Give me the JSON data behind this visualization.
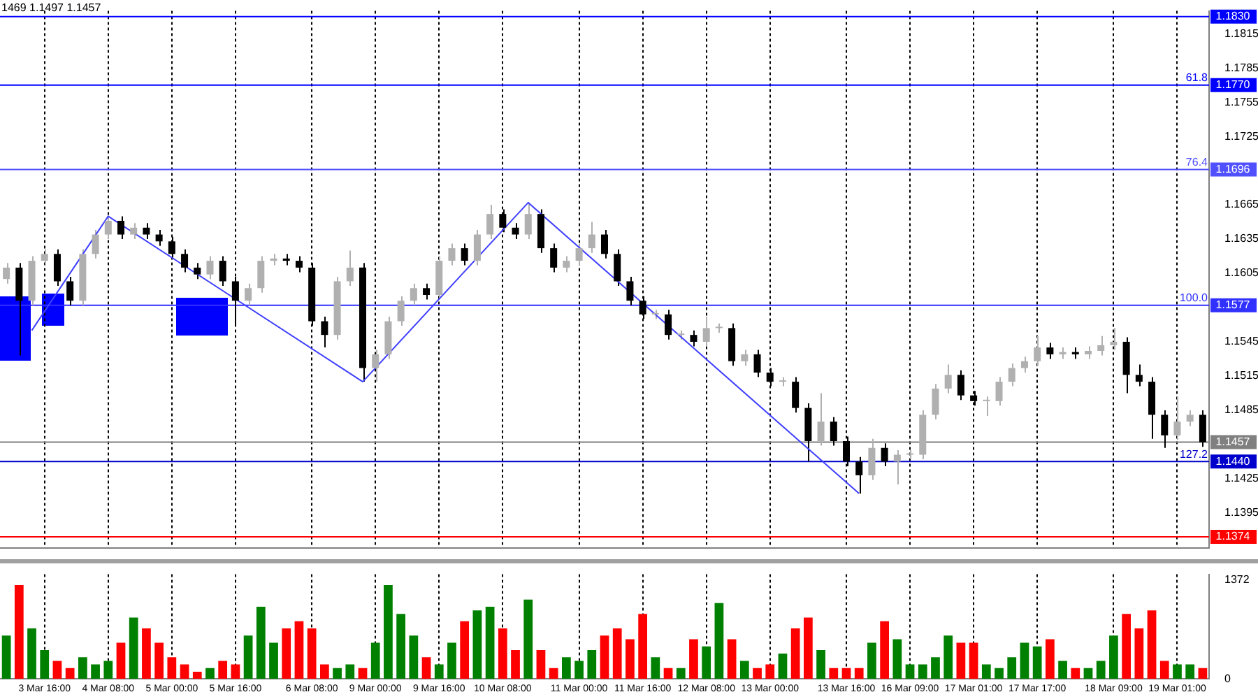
{
  "chart_data": [
    {
      "type": "candlestick",
      "annotations": [
        "1469 1.1497 1.1457",
        {
          "text": "61.8",
          "y": 1.177
        },
        {
          "text": "76.4",
          "y": 1.1696
        },
        {
          "text": "100.0",
          "y": 1.1577
        },
        {
          "text": "127.2",
          "y": 1.144
        }
      ],
      "categories": [
        null,
        null,
        null,
        null,
        null,
        null,
        null,
        null,
        null,
        null,
        null,
        null,
        null,
        null,
        null,
        null,
        null,
        null,
        null,
        null,
        null,
        null,
        null,
        null,
        null,
        null,
        null,
        null,
        null,
        null,
        null,
        null,
        null,
        null,
        null,
        null,
        null,
        null,
        null,
        null,
        null,
        null,
        null,
        null,
        null,
        null,
        null,
        null,
        null,
        null,
        null,
        null,
        null,
        null,
        null,
        null,
        null,
        null,
        null,
        null,
        null,
        null,
        null,
        null,
        null,
        null,
        null,
        null,
        null,
        null,
        null,
        null,
        null,
        null,
        null,
        null,
        null,
        null,
        null,
        null,
        null,
        null,
        null,
        null,
        null,
        null,
        null,
        null,
        null,
        null,
        null,
        null,
        null,
        null,
        null
      ],
      "ohlc": [
        [
          1.16,
          1.1614,
          1.1596,
          1.161
        ],
        [
          1.161,
          1.1614,
          1.1533,
          1.1581
        ],
        [
          1.1581,
          1.162,
          1.1577,
          1.1616
        ],
        [
          1.1616,
          1.1626,
          1.1612,
          1.1622
        ],
        [
          1.1622,
          1.1626,
          1.1594,
          1.1598
        ],
        [
          1.1598,
          1.1602,
          1.1577,
          1.1581
        ],
        [
          1.1581,
          1.1626,
          1.1577,
          1.1622
        ],
        [
          1.1622,
          1.1643,
          1.1618,
          1.1639
        ],
        [
          1.1639,
          1.1655,
          1.1635,
          1.1651
        ],
        [
          1.1651,
          1.1655,
          1.1635,
          1.1639
        ],
        [
          1.1639,
          1.1649,
          1.1635,
          1.1645
        ],
        [
          1.1645,
          1.1649,
          1.1635,
          1.1639
        ],
        [
          1.1639,
          1.1643,
          1.1629,
          1.1633
        ],
        [
          1.1633,
          1.1637,
          1.1618,
          1.1622
        ],
        [
          1.1622,
          1.1626,
          1.1606,
          1.161
        ],
        [
          1.161,
          1.1614,
          1.16,
          1.1604
        ],
        [
          1.1604,
          1.162,
          1.16,
          1.1616
        ],
        [
          1.1616,
          1.162,
          1.1594,
          1.1598
        ],
        [
          1.1598,
          1.1602,
          1.156,
          1.1581
        ],
        [
          1.1581,
          1.1596,
          1.1577,
          1.1592
        ],
        [
          1.1592,
          1.162,
          1.1588,
          1.1616
        ],
        [
          1.1616,
          1.1622,
          1.1612,
          1.1618
        ],
        [
          1.1618,
          1.1622,
          1.1612,
          1.1616
        ],
        [
          1.1616,
          1.162,
          1.1606,
          1.161
        ],
        [
          1.161,
          1.1614,
          1.1559,
          1.1563
        ],
        [
          1.1563,
          1.1567,
          1.154,
          1.1551
        ],
        [
          1.1551,
          1.1602,
          1.1547,
          1.1598
        ],
        [
          1.1598,
          1.1625,
          1.1594,
          1.161
        ],
        [
          1.161,
          1.1614,
          1.151,
          1.1522
        ],
        [
          1.1522,
          1.1538,
          1.151,
          1.1534
        ],
        [
          1.1534,
          1.1567,
          1.153,
          1.1563
        ],
        [
          1.1563,
          1.1585,
          1.1559,
          1.1581
        ],
        [
          1.1581,
          1.1596,
          1.1577,
          1.1592
        ],
        [
          1.1592,
          1.1596,
          1.1582,
          1.1586
        ],
        [
          1.1586,
          1.162,
          1.1582,
          1.1616
        ],
        [
          1.1616,
          1.1631,
          1.1612,
          1.1627
        ],
        [
          1.1627,
          1.1631,
          1.1612,
          1.1616
        ],
        [
          1.1616,
          1.1643,
          1.1612,
          1.1639
        ],
        [
          1.1639,
          1.1665,
          1.1635,
          1.1657
        ],
        [
          1.1657,
          1.1661,
          1.1641,
          1.1645
        ],
        [
          1.1645,
          1.1649,
          1.1635,
          1.1639
        ],
        [
          1.1639,
          1.1667,
          1.1635,
          1.1657
        ],
        [
          1.1657,
          1.1661,
          1.1623,
          1.1627
        ],
        [
          1.1627,
          1.1631,
          1.1606,
          1.161
        ],
        [
          1.161,
          1.162,
          1.1606,
          1.1616
        ],
        [
          1.1616,
          1.1631,
          1.1612,
          1.1627
        ],
        [
          1.1627,
          1.165,
          1.1623,
          1.1639
        ],
        [
          1.1639,
          1.1643,
          1.1618,
          1.1622
        ],
        [
          1.1622,
          1.1626,
          1.1594,
          1.1598
        ],
        [
          1.1598,
          1.1602,
          1.1577,
          1.1581
        ],
        [
          1.1581,
          1.1585,
          1.1565,
          1.1569
        ],
        [
          1.1569,
          1.1573,
          1.1565,
          1.1569
        ],
        [
          1.1569,
          1.1573,
          1.1547,
          1.1551
        ],
        [
          1.1551,
          1.1555,
          1.1547,
          1.1551
        ],
        [
          1.1551,
          1.1555,
          1.1541,
          1.1545
        ],
        [
          1.1545,
          1.1567,
          1.1541,
          1.1557
        ],
        [
          1.1557,
          1.1561,
          1.1553,
          1.1557
        ],
        [
          1.1557,
          1.1561,
          1.1524,
          1.1528
        ],
        [
          1.1528,
          1.1538,
          1.1524,
          1.1534
        ],
        [
          1.1534,
          1.1538,
          1.1514,
          1.1518
        ],
        [
          1.1518,
          1.1522,
          1.1506,
          1.151
        ],
        [
          1.151,
          1.1514,
          1.1506,
          1.151
        ],
        [
          1.151,
          1.1514,
          1.1483,
          1.1487
        ],
        [
          1.1487,
          1.1491,
          1.144,
          1.1458
        ],
        [
          1.1458,
          1.15,
          1.1454,
          1.1475
        ],
        [
          1.1475,
          1.1479,
          1.1454,
          1.1458
        ],
        [
          1.1458,
          1.1462,
          1.1436,
          1.144
        ],
        [
          1.144,
          1.1444,
          1.1412,
          1.1428
        ],
        [
          1.1428,
          1.146,
          1.1424,
          1.1452
        ],
        [
          1.1452,
          1.1456,
          1.1436,
          1.144
        ],
        [
          1.144,
          1.145,
          1.142,
          1.1446
        ],
        [
          1.1446,
          1.145,
          1.1442,
          1.1446
        ],
        [
          1.1446,
          1.1485,
          1.1442,
          1.1481
        ],
        [
          1.1481,
          1.1508,
          1.1477,
          1.1504
        ],
        [
          1.1504,
          1.1525,
          1.15,
          1.1516
        ],
        [
          1.1516,
          1.152,
          1.1494,
          1.1498
        ],
        [
          1.1498,
          1.1502,
          1.1489,
          1.1493
        ],
        [
          1.1493,
          1.1497,
          1.148,
          1.1493
        ],
        [
          1.1493,
          1.1514,
          1.1489,
          1.151
        ],
        [
          1.151,
          1.1526,
          1.1506,
          1.1522
        ],
        [
          1.1522,
          1.1532,
          1.1518,
          1.1528
        ],
        [
          1.1528,
          1.155,
          1.1524,
          1.154
        ],
        [
          1.154,
          1.1544,
          1.153,
          1.1534
        ],
        [
          1.1534,
          1.154,
          1.153,
          1.1536
        ],
        [
          1.1536,
          1.154,
          1.153,
          1.1534
        ],
        [
          1.1534,
          1.1541,
          1.153,
          1.1537
        ],
        [
          1.1537,
          1.155,
          1.1533,
          1.1542
        ],
        [
          1.1542,
          1.1557,
          1.1538,
          1.1545
        ],
        [
          1.1545,
          1.1549,
          1.15,
          1.1516
        ],
        [
          1.1516,
          1.1525,
          1.1506,
          1.151
        ],
        [
          1.151,
          1.1514,
          1.146,
          1.1481
        ],
        [
          1.1481,
          1.1485,
          1.1452,
          1.1463
        ],
        [
          1.1463,
          1.1497,
          1.1459,
          1.1475
        ],
        [
          1.1475,
          1.1485,
          1.1471,
          1.1481
        ],
        [
          1.1481,
          1.1485,
          1.1453,
          1.1457
        ]
      ],
      "series": [
        {
          "type": "line",
          "color": "#4040ff",
          "values": [
            null,
            null,
            1.1555,
            null,
            null,
            null,
            null,
            null,
            1.1655,
            null,
            null,
            null,
            null,
            null,
            null,
            null,
            null,
            null,
            null,
            null,
            null,
            null,
            null,
            null,
            null,
            null,
            null,
            null,
            1.151,
            null,
            null,
            null,
            null,
            null,
            null,
            null,
            null,
            null,
            null,
            null,
            null,
            1.1667,
            null,
            null,
            null,
            null,
            null,
            null,
            null,
            null,
            null,
            null,
            null,
            null,
            null,
            null,
            null,
            null,
            null,
            null,
            null,
            null,
            null,
            null,
            null,
            null,
            null,
            1.1412,
            null,
            null,
            null,
            null,
            null,
            null,
            null,
            null,
            null,
            null,
            null,
            null,
            null,
            null,
            null,
            null,
            null,
            null,
            null,
            null,
            null,
            null,
            null,
            null,
            null,
            null,
            null
          ]
        }
      ],
      "ylim": [
        1.1364,
        1.1835
      ],
      "yticks": [
        1.1815,
        1.1785,
        1.1755,
        1.1725,
        1.1665,
        1.1635,
        1.1605,
        1.1545,
        1.1515,
        1.1485,
        1.1425,
        1.1395
      ],
      "ref_lines": [
        {
          "axis": "y",
          "value": 1.183,
          "label": "1.1830",
          "color": "#0000ff"
        },
        {
          "axis": "y",
          "value": 1.177,
          "label": "1.1770",
          "color": "#0000ff"
        },
        {
          "axis": "y",
          "value": 1.1696,
          "label": "1.1696",
          "color": "#5050ff"
        },
        {
          "axis": "y",
          "value": 1.1577,
          "label": "1.1577",
          "color": "#3030ff"
        },
        {
          "axis": "y",
          "value": 1.1457,
          "label": "1.1457",
          "color": "#808080"
        },
        {
          "axis": "y",
          "value": 1.144,
          "label": "1.1440",
          "color": "#0000cc"
        },
        {
          "axis": "y",
          "value": 1.1374,
          "label": "1.1374",
          "color": "#ff0000"
        }
      ],
      "tick_labels": "y",
      "grid": "x"
    },
    {
      "type": "bar",
      "categories": [
        null,
        null,
        null,
        "3 Mar 16:00",
        null,
        null,
        null,
        null,
        "4 Mar 08:00",
        null,
        null,
        null,
        null,
        "5 Mar 00:00",
        null,
        null,
        null,
        null,
        "5 Mar 16:00",
        null,
        null,
        null,
        null,
        null,
        "6 Mar 08:00",
        null,
        null,
        null,
        null,
        "9 Mar 00:00",
        null,
        null,
        null,
        null,
        "9 Mar 16:00",
        null,
        null,
        null,
        null,
        "10 Mar 08:00",
        null,
        null,
        null,
        null,
        null,
        "11 Mar 00:00",
        null,
        null,
        null,
        null,
        "11 Mar 16:00",
        null,
        null,
        null,
        null,
        "12 Mar 08:00",
        null,
        null,
        null,
        null,
        "13 Mar 00:00",
        null,
        null,
        null,
        null,
        null,
        "13 Mar 16:00",
        null,
        null,
        null,
        null,
        "16 Mar 09:00",
        null,
        null,
        null,
        null,
        "17 Mar 01:00",
        null,
        null,
        null,
        null,
        "17 Mar 17:00",
        null,
        null,
        null,
        null,
        null,
        "18 Mar 09:00",
        null,
        null,
        null,
        null,
        "19 Mar 01:00",
        null,
        null
      ],
      "values": [
        600,
        1300,
        700,
        400,
        250,
        150,
        300,
        200,
        250,
        500,
        850,
        700,
        500,
        300,
        200,
        100,
        150,
        250,
        200,
        600,
        1000,
        500,
        700,
        800,
        700,
        200,
        150,
        200,
        150,
        500,
        1300,
        900,
        600,
        300,
        200,
        500,
        800,
        950,
        1000,
        700,
        400,
        1100,
        400,
        150,
        300,
        250,
        400,
        600,
        700,
        550,
        900,
        300,
        150,
        150,
        550,
        450,
        1050,
        550,
        250,
        150,
        200,
        350,
        700,
        850,
        400,
        150,
        150,
        150,
        500,
        800,
        550,
        200,
        200,
        300,
        600,
        500,
        500,
        200,
        150,
        300,
        500,
        450,
        550,
        250,
        150,
        150,
        250,
        600,
        900,
        700,
        950,
        250,
        200,
        200,
        150
      ],
      "colors": [
        "#008000",
        "#ff0000",
        "#008000",
        "#008000",
        "#ff0000",
        "#ff0000",
        "#008000",
        "#008000",
        "#008000",
        "#ff0000",
        "#008000",
        "#ff0000",
        "#ff0000",
        "#ff0000",
        "#ff0000",
        "#ff0000",
        "#008000",
        "#ff0000",
        "#ff0000",
        "#008000",
        "#008000",
        "#008000",
        "#ff0000",
        "#ff0000",
        "#ff0000",
        "#ff0000",
        "#008000",
        "#008000",
        "#ff0000",
        "#008000",
        "#008000",
        "#008000",
        "#008000",
        "#ff0000",
        "#008000",
        "#008000",
        "#ff0000",
        "#008000",
        "#008000",
        "#ff0000",
        "#ff0000",
        "#008000",
        "#ff0000",
        "#ff0000",
        "#008000",
        "#008000",
        "#008000",
        "#ff0000",
        "#ff0000",
        "#ff0000",
        "#ff0000",
        "#008000",
        "#ff0000",
        "#008000",
        "#ff0000",
        "#008000",
        "#008000",
        "#ff0000",
        "#008000",
        "#ff0000",
        "#ff0000",
        "#008000",
        "#ff0000",
        "#ff0000",
        "#008000",
        "#ff0000",
        "#ff0000",
        "#ff0000",
        "#008000",
        "#ff0000",
        "#008000",
        "#008000",
        "#008000",
        "#008000",
        "#008000",
        "#ff0000",
        "#ff0000",
        "#008000",
        "#008000",
        "#008000",
        "#008000",
        "#008000",
        "#ff0000",
        "#008000",
        "#ff0000",
        "#008000",
        "#008000",
        "#008000",
        "#ff0000",
        "#ff0000",
        "#ff0000",
        "#ff0000",
        "#008000",
        "#008000",
        "#ff0000"
      ],
      "ylim": [
        0,
        1450
      ],
      "yticks": [
        0,
        1372
      ],
      "grid": "x"
    }
  ]
}
